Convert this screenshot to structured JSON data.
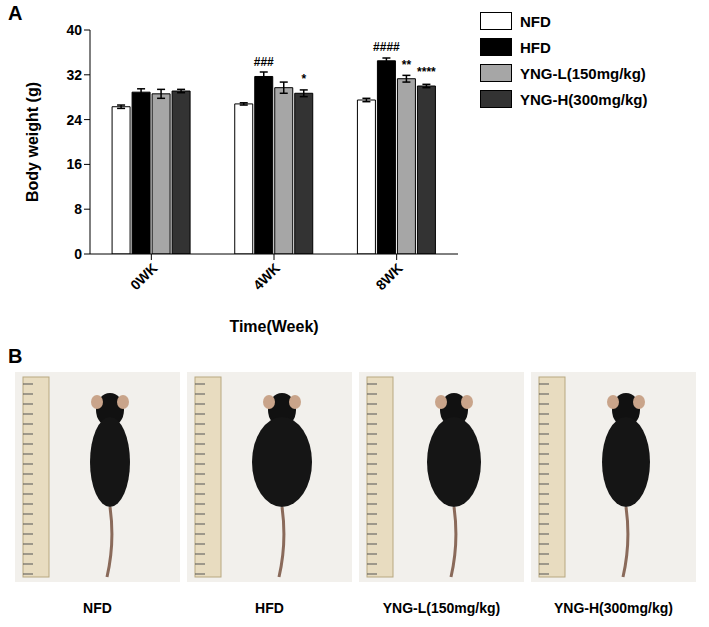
{
  "chart_data": {
    "type": "bar",
    "panel": "A",
    "x_label": "Time(Week)",
    "y_label": "Body weight (g)",
    "categories": [
      "0WK",
      "4WK",
      "8WK"
    ],
    "ylim": [
      0,
      40
    ],
    "yticks": [
      0,
      8,
      16,
      24,
      32,
      40
    ],
    "grid": false,
    "legend": "right",
    "series": [
      {
        "name": "NFD",
        "color": "#ffffff",
        "values": [
          26.3,
          26.8,
          27.5
        ],
        "errors": [
          0.3,
          0.2,
          0.3
        ],
        "significance": [
          null,
          null,
          null
        ]
      },
      {
        "name": "HFD",
        "color": "#000000",
        "values": [
          28.9,
          31.7,
          34.5
        ],
        "errors": [
          0.6,
          0.8,
          0.5
        ],
        "significance": [
          null,
          "###",
          "####"
        ]
      },
      {
        "name": "YNG-L(150mg/kg)",
        "color": "#a6a6a6",
        "values": [
          28.6,
          29.7,
          31.3
        ],
        "errors": [
          0.8,
          1.0,
          0.6
        ],
        "significance": [
          null,
          null,
          "**"
        ]
      },
      {
        "name": "YNG-H(300mg/kg)",
        "color": "#333333",
        "values": [
          29.1,
          28.7,
          30.0
        ],
        "errors": [
          0.3,
          0.6,
          0.3
        ],
        "significance": [
          null,
          "*",
          "****"
        ]
      }
    ]
  },
  "panel_b": {
    "letter": "B",
    "labels": [
      "NFD",
      "HFD",
      "YNG-L(150mg/kg)",
      "YNG-H(300mg/kg)"
    ]
  }
}
